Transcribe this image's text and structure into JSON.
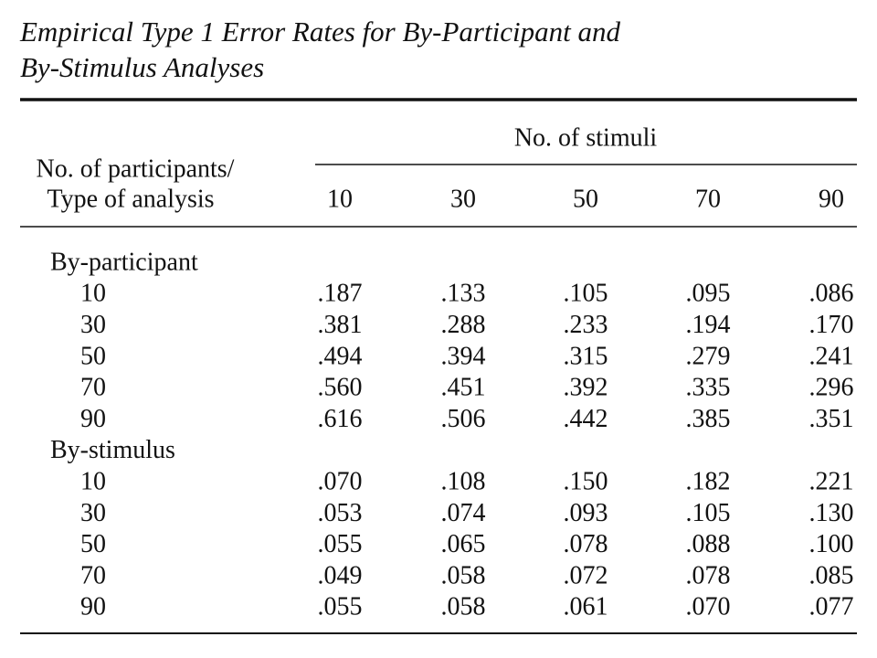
{
  "title": [
    "Empirical Type 1 Error Rates for By-Participant and",
    "By-Stimulus Analyses"
  ],
  "table": {
    "spanner": "No. of stimuli",
    "stub_header": [
      "No. of participants/",
      "Type of analysis"
    ],
    "columns": [
      "10",
      "30",
      "50",
      "70",
      "90"
    ],
    "sections": [
      {
        "label": "By-participant",
        "rows": [
          {
            "label": "10",
            "cells": [
              ".187",
              ".133",
              ".105",
              ".095",
              ".086"
            ]
          },
          {
            "label": "30",
            "cells": [
              ".381",
              ".288",
              ".233",
              ".194",
              ".170"
            ]
          },
          {
            "label": "50",
            "cells": [
              ".494",
              ".394",
              ".315",
              ".279",
              ".241"
            ]
          },
          {
            "label": "70",
            "cells": [
              ".560",
              ".451",
              ".392",
              ".335",
              ".296"
            ]
          },
          {
            "label": "90",
            "cells": [
              ".616",
              ".506",
              ".442",
              ".385",
              ".351"
            ]
          }
        ]
      },
      {
        "label": "By-stimulus",
        "rows": [
          {
            "label": "10",
            "cells": [
              ".070",
              ".108",
              ".150",
              ".182",
              ".221"
            ]
          },
          {
            "label": "30",
            "cells": [
              ".053",
              ".074",
              ".093",
              ".105",
              ".130"
            ]
          },
          {
            "label": "50",
            "cells": [
              ".055",
              ".065",
              ".078",
              ".088",
              ".100"
            ]
          },
          {
            "label": "70",
            "cells": [
              ".049",
              ".058",
              ".072",
              ".078",
              ".085"
            ]
          },
          {
            "label": "90",
            "cells": [
              ".055",
              ".058",
              ".061",
              ".070",
              ".077"
            ]
          }
        ]
      }
    ]
  }
}
